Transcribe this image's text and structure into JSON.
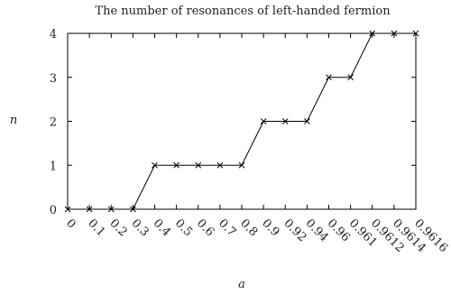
{
  "chart_data": {
    "type": "line",
    "title": "The number of resonances of left-handed fermion",
    "xlabel": "a",
    "ylabel": "n",
    "categories": [
      "0",
      "0.1",
      "0.2",
      "0.3",
      "0.4",
      "0.5",
      "0.6",
      "0.7",
      "0.8",
      "0.9",
      "0.92",
      "0.94",
      "0.96",
      "0.961",
      "0.9612",
      "0.9614",
      "0.9616"
    ],
    "yticks": [
      0,
      1,
      2,
      3,
      4
    ],
    "ylim": [
      0,
      4
    ],
    "grid": false,
    "series": [
      {
        "values": [
          0,
          0,
          0,
          0,
          1,
          1,
          1,
          1,
          1,
          2,
          2,
          2,
          3,
          3,
          4,
          4,
          4
        ],
        "marker": "x",
        "color": "#000000"
      }
    ]
  }
}
